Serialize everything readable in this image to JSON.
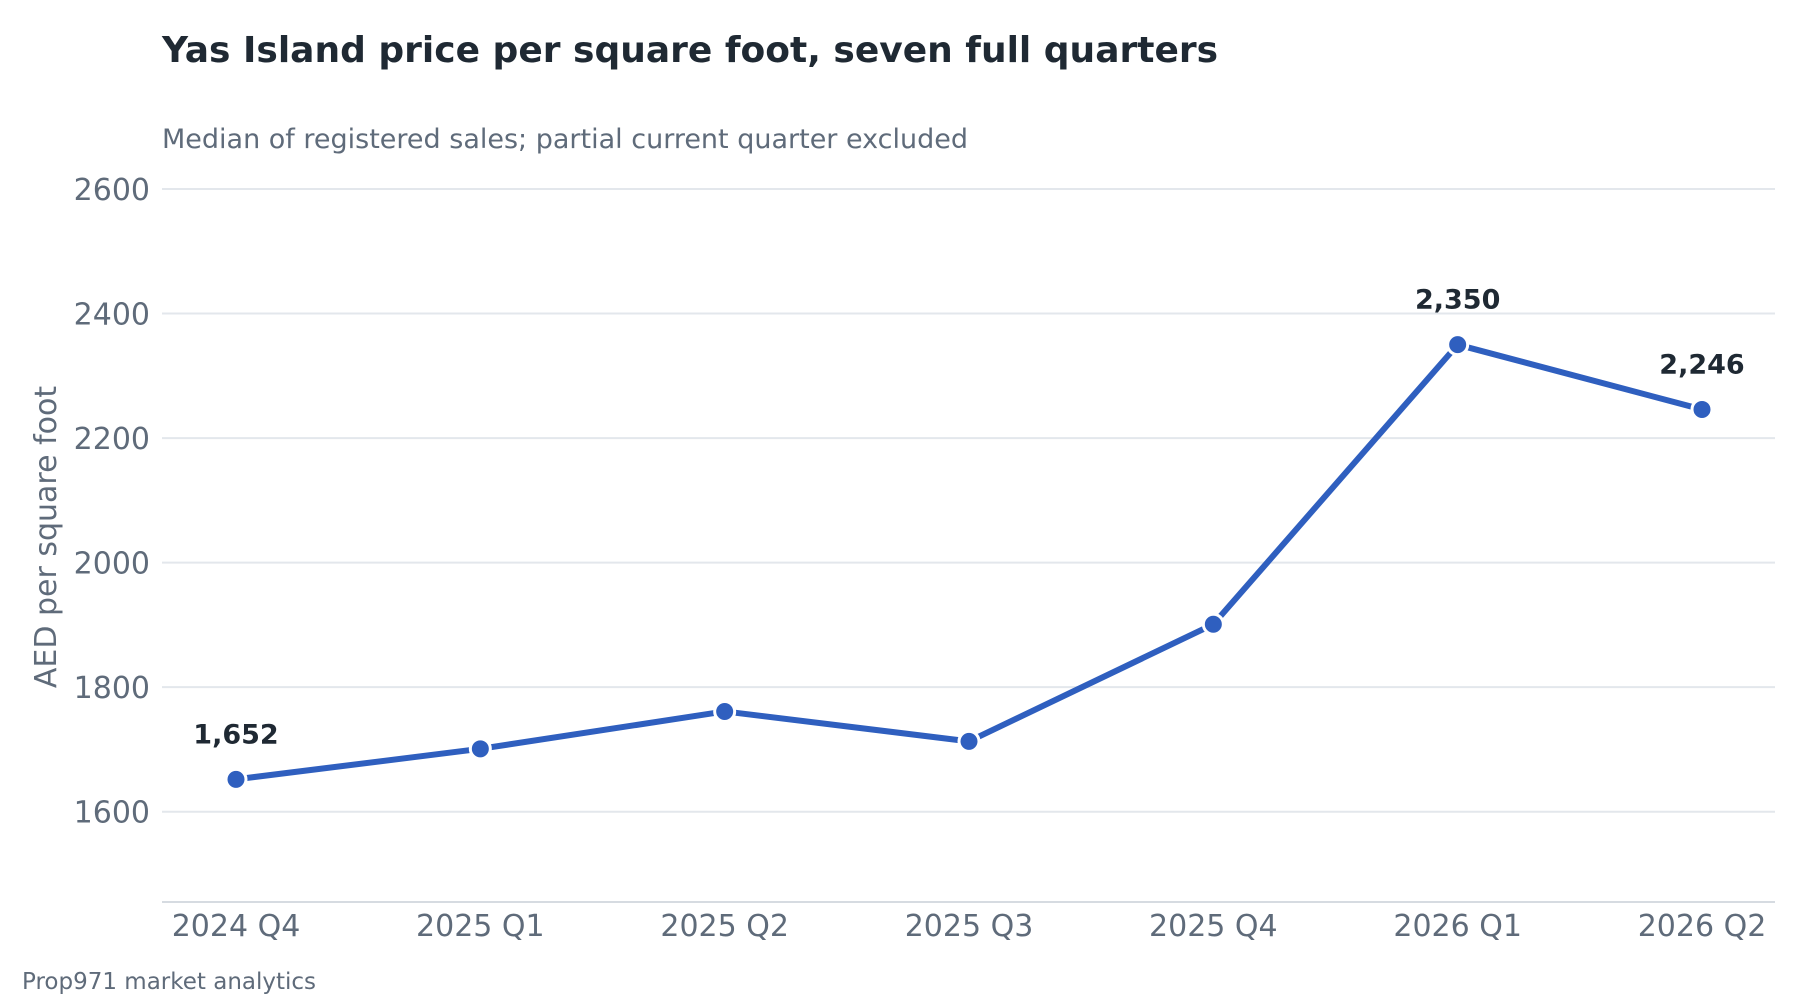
{
  "chart_data": {
    "type": "line",
    "title": "Yas Island price per square foot, seven full quarters",
    "subtitle": "Median of registered sales; partial current quarter excluded",
    "xlabel": "",
    "ylabel": "AED per square foot",
    "categories": [
      "2024 Q4",
      "2025 Q1",
      "2025 Q2",
      "2025 Q3",
      "2025 Q4",
      "2026 Q1",
      "2026 Q2"
    ],
    "series": [
      {
        "values": [
          1652,
          1701,
          1761,
          1713,
          1901,
          2350,
          2246
        ]
      }
    ],
    "data_labels": [
      {
        "index": 0,
        "text": "1,652"
      },
      {
        "index": 5,
        "text": "2,350"
      },
      {
        "index": 6,
        "text": "2,246"
      }
    ],
    "yticks": [
      "1600",
      "1800",
      "2000",
      "2200",
      "2400",
      "2600"
    ],
    "ylim": [
      1455,
      2600
    ],
    "grid": true,
    "legend": "none",
    "colors": {
      "line": "#2f5fbf",
      "marker_stroke": "#ffffff"
    },
    "source": "Prop971 market analytics"
  }
}
